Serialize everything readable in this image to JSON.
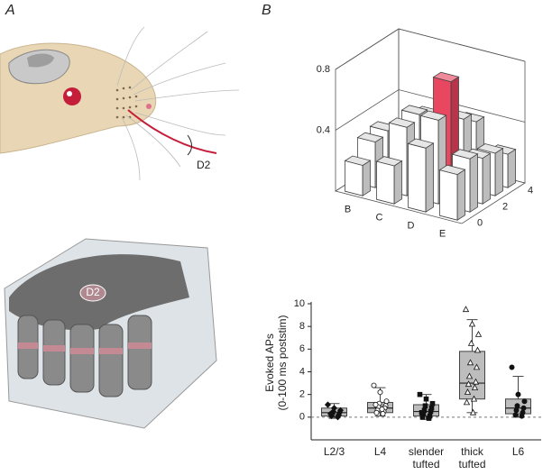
{
  "panel_labels": [
    "A",
    "B"
  ],
  "illustration_labels": {
    "whisker": "D2",
    "barrel": "D2"
  },
  "chart_data": [
    {
      "type": "bar3d",
      "categories": [
        "B",
        "C",
        "D",
        "E"
      ],
      "depth_ticks": [
        0,
        2,
        4
      ],
      "zlim": [
        0,
        0.8
      ],
      "zticks": [
        0.4,
        0.8
      ],
      "color": "#ffffff",
      "highlight_color": "#e8475f",
      "highlight": [
        2,
        2
      ],
      "rows": [
        [
          0.2,
          0.25,
          0.42,
          0.3
        ],
        [
          0.3,
          0.45,
          0.55,
          0.35
        ],
        [
          0.32,
          0.48,
          0.75,
          0.3
        ],
        [
          0.25,
          0.42,
          0.45,
          0.28
        ],
        [
          0.2,
          0.35,
          0.38,
          0.22
        ]
      ]
    },
    {
      "type": "box",
      "ylabel": [
        "Evoked APs",
        "(0-100 ms poststim)"
      ],
      "ylim": [
        -2,
        10
      ],
      "yticks": [
        0,
        2,
        4,
        6,
        8,
        10
      ],
      "categories": [
        [
          "L2/3"
        ],
        [
          "L4"
        ],
        [
          "slender",
          "tufted"
        ],
        [
          "thick",
          "tufted"
        ],
        [
          "L6"
        ]
      ],
      "box_color": "#bdbdbd",
      "boxes": [
        {
          "low": -0.1,
          "q1": 0.1,
          "median": 0.4,
          "q3": 0.8,
          "high": 1.2,
          "marker": "diamond",
          "points": [
            1.1,
            0.8,
            0.6,
            0.5,
            0.4,
            0.3,
            0.2,
            0.1,
            0.0,
            0.3
          ]
        },
        {
          "low": 0.1,
          "q1": 0.4,
          "median": 0.8,
          "q3": 1.3,
          "high": 2.6,
          "marker": "circle-open",
          "points": [
            2.8,
            2.2,
            1.4,
            1.2,
            1.0,
            0.9,
            0.8,
            0.6,
            0.5,
            0.4,
            0.3,
            1.1,
            0.7
          ]
        },
        {
          "low": -0.2,
          "q1": 0.1,
          "median": 0.5,
          "q3": 1.1,
          "high": 2.0,
          "marker": "square",
          "points": [
            2.0,
            1.6,
            1.2,
            1.0,
            0.8,
            0.6,
            0.5,
            0.3,
            0.1,
            0.0,
            -0.1,
            0.4
          ]
        },
        {
          "low": 0.4,
          "q1": 1.6,
          "median": 3.0,
          "q3": 5.8,
          "high": 8.6,
          "marker": "triangle-open",
          "points": [
            9.5,
            8.2,
            7.3,
            6.5,
            5.9,
            4.8,
            4.4,
            3.6,
            3.1,
            2.9,
            2.6,
            2.2,
            1.6,
            1.3,
            0.4
          ]
        },
        {
          "low": 0.0,
          "q1": 0.3,
          "median": 0.8,
          "q3": 1.6,
          "high": 3.6,
          "marker": "circle",
          "points": [
            4.4,
            2.0,
            1.4,
            1.0,
            0.8,
            0.6,
            0.4,
            0.2,
            0.1
          ]
        }
      ]
    }
  ]
}
